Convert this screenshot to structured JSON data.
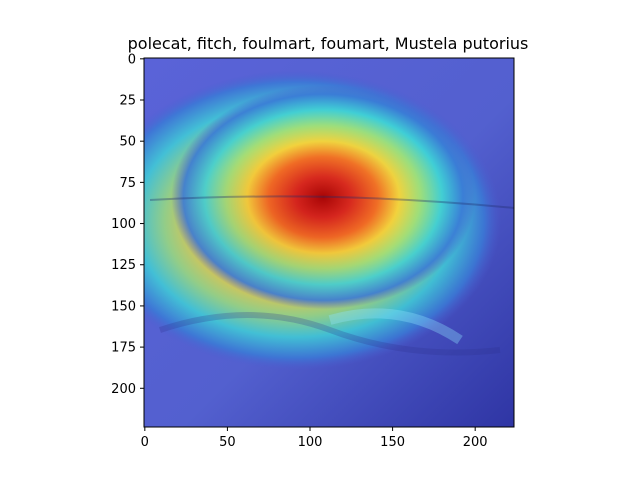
{
  "chart_data": {
    "type": "heatmap",
    "title": "polecat, fitch, foulmart, foumart, Mustela putorius",
    "xlabel": "",
    "ylabel": "",
    "xlim": [
      -0.5,
      223.5
    ],
    "ylim": [
      223.5,
      -0.5
    ],
    "x_ticks": [
      0,
      50,
      100,
      150,
      200
    ],
    "y_ticks": [
      0,
      25,
      50,
      75,
      100,
      125,
      150,
      175,
      200
    ],
    "grid": false,
    "colormap": "jet",
    "heat_peak": {
      "x": 108,
      "y": 84,
      "intensity": 1.0
    },
    "heat_spread": {
      "x": 46,
      "y": 34
    }
  }
}
